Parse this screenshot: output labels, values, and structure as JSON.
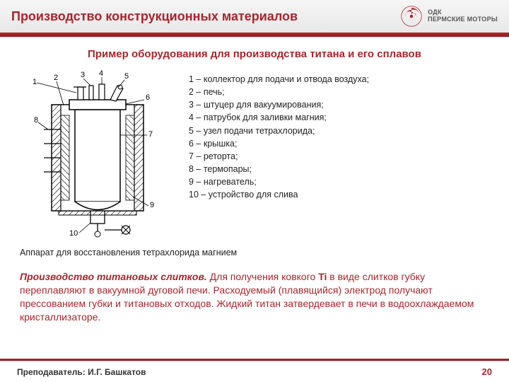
{
  "colors": {
    "accent": "#a8252c",
    "title": "#a8252c",
    "subtitle": "#a8252c",
    "body_accent": "#a8252c",
    "text": "#222222",
    "page_number": "#a8252c",
    "header_bg_top": "#f5f5f5",
    "header_bg_bottom": "#e8e8e8"
  },
  "header": {
    "title": "Производство конструкционных материалов",
    "logo": {
      "line1": "ОДК",
      "line2": "ПЕРМСКИЕ МОТОРЫ"
    }
  },
  "subtitle": "Пример оборудования для производства титана и его сплавов",
  "legend": {
    "items": [
      "1 – коллектор для подачи и отвода воздуха;",
      "2 – печь;",
      "3 – штуцер для вакуумирования;",
      "4 – патрубок для заливки магния;",
      "5 – узел подачи тетрахлорида;",
      "6 – крышка;",
      "7 – реторта;",
      "8 – термопары;",
      "9 – нагреватель;",
      "10 – устройство для слива"
    ]
  },
  "caption": "Аппарат для восстановления тетрахлорида магнием",
  "body": {
    "lead": "Производство титановых слитков.",
    "bold_element": "Ti",
    "text_pre": " Для получения ковкого ",
    "text_post": " в виде слитков губку переплавляют в вакуумной дуговой печи. Расходуемый (плавящийся) электрод получают прессованием губки и титановых отходов. Жидкий титан затвердевает в печи в водоохлаждаемом кристаллизаторе."
  },
  "footer": {
    "teacher": "Преподаватель: И.Г. Башкатов",
    "page": "20"
  },
  "diagram": {
    "type": "schematic",
    "labels": [
      "1",
      "2",
      "3",
      "4",
      "5",
      "6",
      "7",
      "8",
      "9",
      "10"
    ],
    "stroke": "#000000",
    "hatch": "#000000",
    "background": "#ffffff"
  }
}
